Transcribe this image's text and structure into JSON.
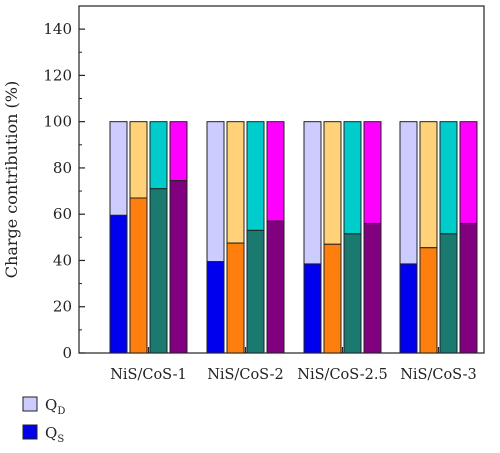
{
  "chart_data": {
    "type": "bar",
    "stacked": true,
    "ylabel": "Charge contribution (%)",
    "ylim": [
      0,
      150
    ],
    "yticks": [
      0,
      20,
      40,
      60,
      80,
      100,
      120,
      140
    ],
    "categories": [
      "NiS/CoS-1",
      "NiS/CoS-2",
      "NiS/CoS-2.5",
      "NiS/CoS-3"
    ],
    "bars_per_category": 4,
    "qs_values": [
      [
        59.5,
        67,
        71,
        74.5
      ],
      [
        39.5,
        47.5,
        53,
        57
      ],
      [
        38.5,
        47,
        51.5,
        56
      ],
      [
        38.5,
        45.5,
        51.5,
        56
      ]
    ],
    "total": 100,
    "qs_colors": [
      "#0000ee",
      "#ff7f0e",
      "#1a7a70",
      "#800080"
    ],
    "qd_colors": [
      "#ccccff",
      "#ffd27a",
      "#00cccc",
      "#ff00ff"
    ],
    "legend": [
      {
        "key": "qd",
        "main": "Q",
        "sub": "D",
        "color": "#ccccff"
      },
      {
        "key": "qs",
        "main": "Q",
        "sub": "S",
        "color": "#0000ee"
      }
    ],
    "legend_position": "bottom-left",
    "grid": false
  }
}
